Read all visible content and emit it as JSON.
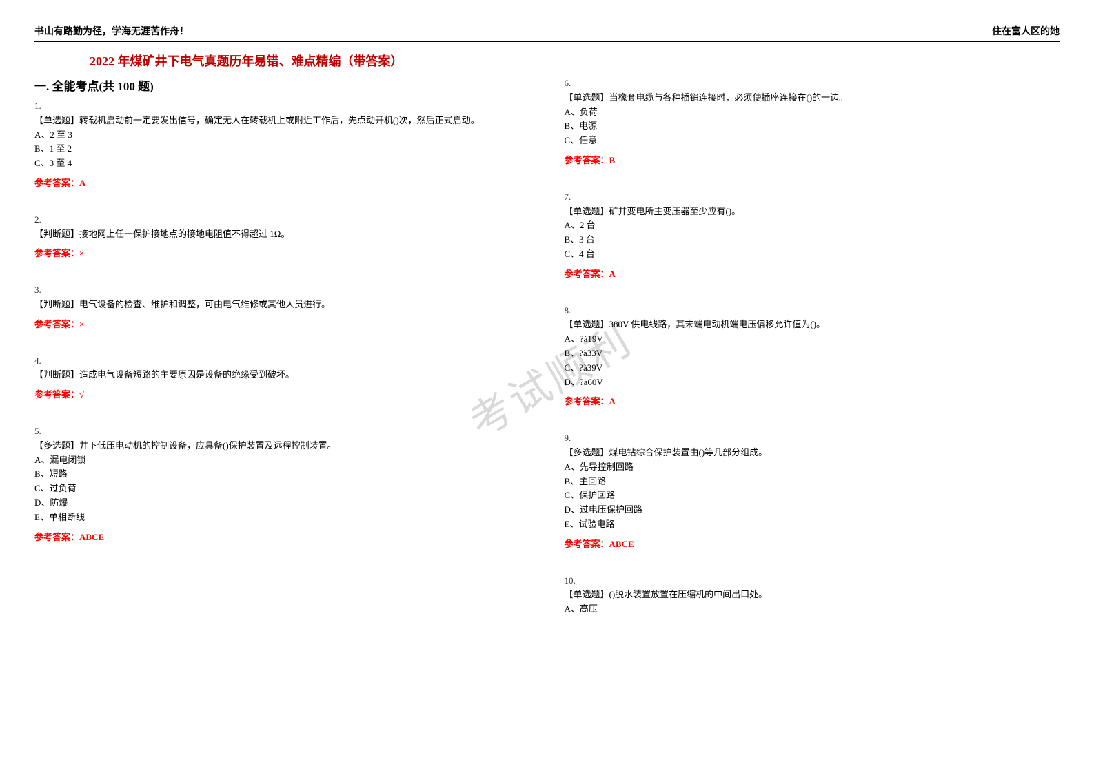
{
  "header": {
    "left": "书山有路勤为径，学海无涯苦作舟！",
    "right": "住在富人区的她"
  },
  "title": "2022 年煤矿井下电气真题历年易错、难点精编（带答案）",
  "section": "一. 全能考点(共 100 题)",
  "watermark": "考试顺利",
  "colors": {
    "title": "#c00000",
    "answer": "#ff0000",
    "text": "#000000",
    "watermark": "#d9d9d9",
    "background": "#ffffff"
  },
  "questions": {
    "q1": {
      "num": "1.",
      "text": "【单选题】转载机启动前一定要发出信号，确定无人在转载机上或附近工作后，先点动开机()次，然后正式启动。",
      "optA": "A、2 至 3",
      "optB": "B、1 至 2",
      "optC": "C、3 至 4",
      "answer": "参考答案：A"
    },
    "q2": {
      "num": "2.",
      "text": "【判断题】接地网上任一保护接地点的接地电阻值不得超过 1Ω。",
      "answer": "参考答案：×"
    },
    "q3": {
      "num": "3.",
      "text": "【判断题】电气设备的检查、维护和调整，可由电气维修或其他人员进行。",
      "answer": "参考答案：×"
    },
    "q4": {
      "num": "4.",
      "text": "【判断题】造成电气设备短路的主要原因是设备的绝缘受到破坏。",
      "answer": "参考答案：√"
    },
    "q5": {
      "num": "5.",
      "text": "【多选题】井下低压电动机的控制设备，应具备()保护装置及远程控制装置。",
      "optA": "A、漏电闭锁",
      "optB": "B、短路",
      "optC": "C、过负荷",
      "optD": "D、防爆",
      "optE": "E、单相断线",
      "answer": "参考答案：ABCE"
    },
    "q6": {
      "num": "6.",
      "text": "【单选题】当橡套电缆与各种插销连接时，必须使插座连接在()的一边。",
      "optA": "A、负荷",
      "optB": "B、电源",
      "optC": "C、任意",
      "answer": "参考答案：B"
    },
    "q7": {
      "num": "7.",
      "text": "【单选题】矿井变电所主变压器至少应有()。",
      "optA": "A、2 台",
      "optB": "B、3 台",
      "optC": "C、4 台",
      "answer": "参考答案：A"
    },
    "q8": {
      "num": "8.",
      "text": "【单选题】380V 供电线路，其末端电动机端电压偏移允许值为()。",
      "optA": "A、?à19V",
      "optB": "B、?à33V",
      "optC": "C、?à39V",
      "optD": "D、?à60V",
      "answer": "参考答案：A"
    },
    "q9": {
      "num": "9.",
      "text": "【多选题】煤电钻综合保护装置由()等几部分组成。",
      "optA": "A、先导控制回路",
      "optB": "B、主回路",
      "optC": "C、保护回路",
      "optD": "D、过电压保护回路",
      "optE": "E、试验电路",
      "answer": "参考答案：ABCE"
    },
    "q10": {
      "num": "10.",
      "text": "【单选题】()脱水装置放置在压缩机的中间出口处。",
      "optA": "A、高压"
    }
  }
}
